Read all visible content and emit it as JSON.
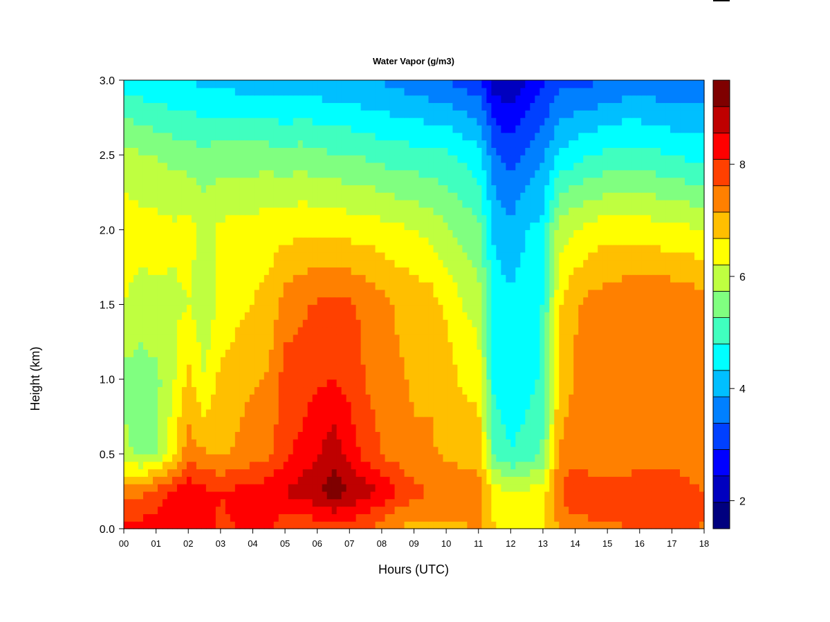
{
  "chart_data": {
    "type": "heatmap",
    "title": "Water Vapor (g/m3)",
    "xlabel": "Hours (UTC)",
    "ylabel": "Height (km)",
    "xlim": [
      0,
      18
    ],
    "ylim": [
      0,
      3
    ],
    "x_ticks": [
      "00",
      "01",
      "02",
      "03",
      "04",
      "05",
      "06",
      "07",
      "08",
      "09",
      "10",
      "11",
      "12",
      "13",
      "14",
      "15",
      "16",
      "17",
      "18"
    ],
    "y_ticks": [
      "0.0",
      "0.5",
      "1.0",
      "1.5",
      "2.0",
      "2.5",
      "3.0"
    ],
    "colorbar": {
      "range": [
        1.5,
        9.5
      ],
      "ticks": [
        "2",
        "4",
        "6",
        "8"
      ],
      "colors": [
        "#00007f",
        "#0000bf",
        "#0000ff",
        "#0040ff",
        "#0080ff",
        "#00bfff",
        "#00ffff",
        "#40ffbf",
        "#80ff80",
        "#bfff40",
        "#ffff00",
        "#ffbf00",
        "#ff8000",
        "#ff4000",
        "#ff0000",
        "#bf0000",
        "#7f0000"
      ]
    },
    "hours": [
      0,
      0.5,
      1,
      1.5,
      2,
      2.5,
      3,
      3.5,
      4,
      4.5,
      5,
      5.5,
      6,
      6.5,
      7,
      7.5,
      8,
      8.5,
      9,
      9.5,
      10,
      10.5,
      11,
      11.5,
      12,
      12.5,
      13,
      13.5,
      14,
      14.5,
      15,
      15.5,
      16,
      16.5,
      17,
      17.5,
      18
    ],
    "heights_km": [
      0,
      0.25,
      0.5,
      1,
      1.5,
      2,
      2.5,
      3
    ],
    "values_g_m3": [
      [
        8.3,
        8.3,
        8.3,
        8.5,
        8.5,
        8.2,
        8.0,
        8.1,
        8.2,
        8.3,
        7.6,
        7.6,
        7.8,
        7.9,
        7.8,
        7.6,
        7.4,
        7.1,
        7.0,
        7.1,
        7.0,
        7.1,
        7.2,
        6.7,
        6.5,
        6.6,
        6.6,
        7.2,
        7.4,
        7.5,
        7.5,
        7.6,
        7.8,
        7.9,
        7.8,
        7.7,
        7.6
      ],
      [
        7.4,
        7.5,
        7.8,
        8.1,
        8.5,
        8.2,
        8.1,
        8.2,
        8.3,
        8.4,
        8.6,
        8.8,
        9.0,
        9.3,
        9.0,
        8.8,
        8.5,
        8.1,
        7.8,
        7.6,
        7.5,
        7.3,
        7.3,
        6.5,
        6.2,
        6.3,
        6.4,
        7.6,
        8.0,
        7.9,
        7.9,
        7.9,
        7.9,
        7.9,
        8.0,
        7.8,
        7.6
      ],
      [
        5.9,
        5.6,
        5.7,
        6.5,
        7.4,
        7.2,
        7.1,
        7.2,
        7.4,
        7.5,
        8.0,
        8.2,
        8.5,
        8.9,
        8.4,
        7.9,
        7.6,
        7.4,
        7.2,
        7.2,
        7.1,
        7.0,
        7.0,
        5.2,
        4.8,
        5.0,
        5.4,
        7.2,
        7.4,
        7.3,
        7.3,
        7.3,
        7.4,
        7.4,
        7.4,
        7.3,
        7.2
      ],
      [
        5.6,
        5.5,
        5.6,
        6.1,
        6.8,
        6.2,
        6.8,
        7.0,
        7.1,
        7.2,
        7.8,
        7.9,
        8.0,
        8.1,
        7.9,
        7.6,
        7.4,
        7.2,
        7.1,
        7.1,
        6.9,
        6.6,
        6.5,
        4.6,
        4.5,
        4.6,
        4.9,
        6.8,
        7.2,
        7.3,
        7.4,
        7.5,
        7.4,
        7.5,
        7.5,
        7.4,
        7.3
      ],
      [
        6.2,
        6.0,
        6.1,
        6.1,
        6.2,
        5.9,
        6.3,
        6.5,
        6.7,
        6.8,
        7.4,
        7.5,
        7.7,
        7.8,
        7.7,
        7.5,
        7.3,
        7.1,
        7.0,
        6.9,
        6.6,
        6.2,
        6.0,
        4.6,
        4.4,
        4.6,
        4.8,
        6.6,
        7.1,
        7.3,
        7.4,
        7.5,
        7.5,
        7.6,
        7.6,
        7.5,
        7.4
      ],
      [
        6.5,
        6.4,
        6.4,
        6.3,
        6.4,
        6.1,
        6.3,
        6.4,
        6.4,
        6.5,
        6.5,
        6.6,
        6.6,
        6.6,
        6.5,
        6.5,
        6.4,
        6.3,
        6.2,
        6.1,
        5.8,
        5.6,
        5.4,
        4.2,
        4.0,
        4.3,
        4.5,
        6.0,
        6.2,
        6.4,
        6.5,
        6.5,
        6.5,
        6.4,
        6.3,
        6.3,
        6.2
      ],
      [
        5.9,
        5.8,
        5.7,
        5.6,
        5.5,
        5.4,
        5.5,
        5.5,
        5.5,
        5.5,
        5.4,
        5.5,
        5.4,
        5.3,
        5.3,
        5.2,
        5.1,
        5.0,
        5.0,
        4.9,
        4.9,
        4.7,
        4.5,
        3.5,
        3.2,
        3.5,
        3.8,
        4.4,
        4.6,
        4.8,
        4.9,
        5.0,
        5.0,
        4.9,
        4.8,
        4.7,
        4.7
      ],
      [
        4.6,
        4.5,
        4.4,
        4.3,
        4.3,
        4.2,
        4.2,
        4.1,
        4.1,
        4.0,
        4.0,
        4.0,
        4.0,
        3.9,
        3.9,
        3.8,
        3.8,
        3.7,
        3.6,
        3.5,
        3.4,
        3.2,
        3.1,
        2.2,
        2.0,
        2.4,
        2.8,
        3.2,
        3.3,
        3.3,
        3.4,
        3.5,
        3.5,
        3.5,
        3.4,
        3.4,
        3.4
      ]
    ]
  }
}
